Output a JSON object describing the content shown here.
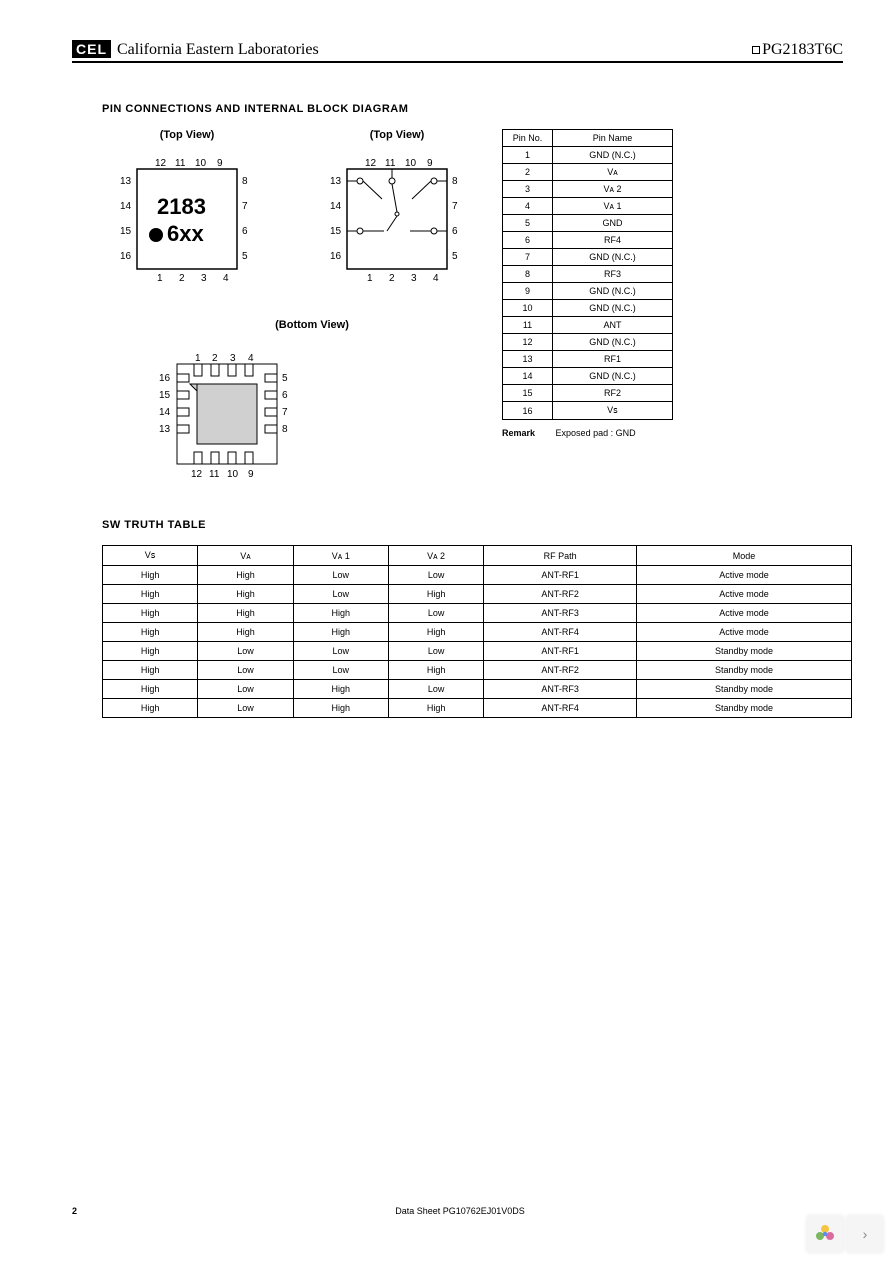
{
  "header": {
    "logo_text": "CEL",
    "company": "California Eastern Laboratories",
    "partno": "PG2183T6C"
  },
  "section1_title": "PIN  CONNECTIONS  AND  INTERNAL  BLOCK  DIAGRAM",
  "diagrams": {
    "top_view_label": "(Top View)",
    "bottom_view_label": "(Bottom View)",
    "chip_line1": "2183",
    "chip_line2": "6xx",
    "pins_top": [
      "12",
      "11",
      "10",
      "9"
    ],
    "pins_right": [
      "8",
      "7",
      "6",
      "5"
    ],
    "pins_bottom": [
      "1",
      "2",
      "3",
      "4"
    ],
    "pins_left": [
      "13",
      "14",
      "15",
      "16"
    ]
  },
  "pin_table": {
    "headers": [
      "Pin No.",
      "Pin Name"
    ],
    "rows": [
      [
        "1",
        "GND (N.C.)"
      ],
      [
        "2",
        "Vᴀ"
      ],
      [
        "3",
        "Vᴀ  2"
      ],
      [
        "4",
        "Vᴀ  1"
      ],
      [
        "5",
        "GND"
      ],
      [
        "6",
        "RF4"
      ],
      [
        "7",
        "GND (N.C.)"
      ],
      [
        "8",
        "RF3"
      ],
      [
        "9",
        "GND (N.C.)"
      ],
      [
        "10",
        "GND (N.C.)"
      ],
      [
        "11",
        "ANT"
      ],
      [
        "12",
        "GND (N.C.)"
      ],
      [
        "13",
        "RF1"
      ],
      [
        "14",
        "GND (N.C.)"
      ],
      [
        "15",
        "RF2"
      ],
      [
        "16",
        "Vꜱ"
      ]
    ],
    "remark_label": "Remark",
    "remark_text": "Exposed pad : GND"
  },
  "section2_title": "SW  TRUTH  TABLE",
  "truth_table": {
    "headers": [
      "Vꜱ",
      "Vᴀ",
      "Vᴀ  1",
      "Vᴀ  2",
      "RF Path",
      "Mode"
    ],
    "rows": [
      [
        "High",
        "High",
        "Low",
        "Low",
        "ANT-RF1",
        "Active mode"
      ],
      [
        "High",
        "High",
        "Low",
        "High",
        "ANT-RF2",
        "Active mode"
      ],
      [
        "High",
        "High",
        "High",
        "Low",
        "ANT-RF3",
        "Active mode"
      ],
      [
        "High",
        "High",
        "High",
        "High",
        "ANT-RF4",
        "Active mode"
      ],
      [
        "High",
        "Low",
        "Low",
        "Low",
        "ANT-RF1",
        "Standby mode"
      ],
      [
        "High",
        "Low",
        "Low",
        "High",
        "ANT-RF2",
        "Standby mode"
      ],
      [
        "High",
        "Low",
        "High",
        "Low",
        "ANT-RF3",
        "Standby mode"
      ],
      [
        "High",
        "Low",
        "High",
        "High",
        "ANT-RF4",
        "Standby mode"
      ]
    ]
  },
  "footer": {
    "page": "2",
    "doc": "Data Sheet  PG10762EJ01V0DS"
  },
  "svg_style": {
    "chip_stroke": "#000000",
    "chip_fill": "#ffffff",
    "pad_fill": "#d0d0d0",
    "text_color": "#000000",
    "dot_fill": "#000000",
    "sw_circle_fill": "none"
  }
}
